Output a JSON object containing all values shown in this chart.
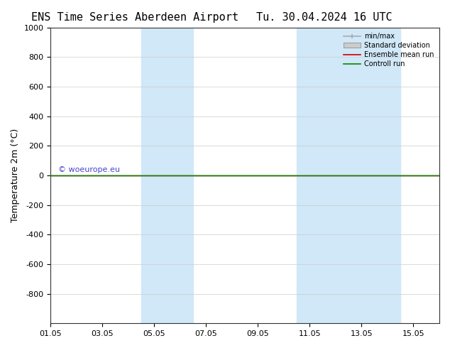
{
  "title_left": "ENS Time Series Aberdeen Airport",
  "title_right": "Tu. 30.04.2024 16 UTC",
  "ylabel": "Temperature 2m (°C)",
  "ylim": [
    -1000,
    1000
  ],
  "yticks": [
    -800,
    -600,
    -400,
    -200,
    0,
    200,
    400,
    600,
    800,
    1000
  ],
  "xlim_start": "2024-05-01",
  "xlim_end": "2024-05-16",
  "xtick_labels": [
    "01.05",
    "03.05",
    "05.05",
    "07.05",
    "09.05",
    "11.05",
    "13.05",
    "15.05"
  ],
  "xtick_positions": [
    0,
    2,
    4,
    6,
    8,
    10,
    12,
    14
  ],
  "shaded_bands": [
    {
      "x_start": 3.5,
      "x_end": 5.5
    },
    {
      "x_start": 9.5,
      "x_end": 11.5
    },
    {
      "x_start": 11.5,
      "x_end": 13.5
    }
  ],
  "watermark": "© woeurope.eu",
  "watermark_color": "#4444cc",
  "ensemble_mean_color": "#cc0000",
  "control_run_color": "#008800",
  "std_dev_color": "#cccccc",
  "minmax_color": "#aaaaaa",
  "legend_labels": [
    "min/max",
    "Standard deviation",
    "Ensemble mean run",
    "Controll run"
  ],
  "background_color": "#ffffff",
  "plot_bg_color": "#ffffff",
  "grid_color": "#cccccc",
  "line_y": 0.0,
  "title_fontsize": 11,
  "axis_fontsize": 9,
  "tick_fontsize": 8
}
